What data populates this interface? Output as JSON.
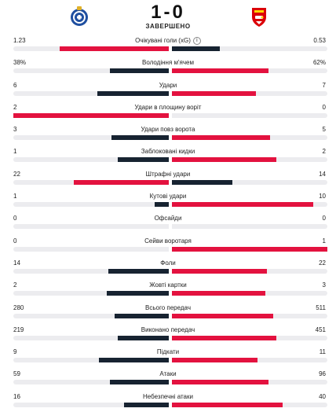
{
  "match": {
    "home_score": "1",
    "separator": "-",
    "away_score": "0",
    "status": "ЗАВЕРШЕНО",
    "home_logo_icon": "fc-porto-crest-icon",
    "away_logo_icon": "arsenal-crest-icon"
  },
  "colors": {
    "leader": "#e3123f",
    "trailer": "#172331",
    "track": "#ececef"
  },
  "stats": [
    {
      "label": "Очікувані голи (xG)",
      "home": "1.23",
      "away": "0.53",
      "home_frac": 0.7,
      "away_frac": 0.31,
      "home_lead": true,
      "away_lead": false,
      "info": "i"
    },
    {
      "label": "Володіння м'ячем",
      "home": "38%",
      "away": "62%",
      "home_frac": 0.38,
      "away_frac": 0.62,
      "home_lead": false,
      "away_lead": true
    },
    {
      "label": "Удари",
      "home": "6",
      "away": "7",
      "home_frac": 0.46,
      "away_frac": 0.54,
      "home_lead": false,
      "away_lead": true
    },
    {
      "label": "Удари в площину воріт",
      "home": "2",
      "away": "0",
      "home_frac": 1.0,
      "away_frac": 0.0,
      "home_lead": true,
      "away_lead": false
    },
    {
      "label": "Удари повз ворота",
      "home": "3",
      "away": "5",
      "home_frac": 0.37,
      "away_frac": 0.63,
      "home_lead": false,
      "away_lead": true
    },
    {
      "label": "Заблоковані кидки",
      "home": "1",
      "away": "2",
      "home_frac": 0.33,
      "away_frac": 0.67,
      "home_lead": false,
      "away_lead": true
    },
    {
      "label": "Штрафні удари",
      "home": "22",
      "away": "14",
      "home_frac": 0.61,
      "away_frac": 0.39,
      "home_lead": true,
      "away_lead": false
    },
    {
      "label": "Кутові удари",
      "home": "1",
      "away": "10",
      "home_frac": 0.09,
      "away_frac": 0.91,
      "home_lead": false,
      "away_lead": true
    },
    {
      "label": "Офсайди",
      "home": "0",
      "away": "0",
      "home_frac": 0.0,
      "away_frac": 0.0,
      "home_lead": false,
      "away_lead": false
    },
    {
      "label": "Сейви воротаря",
      "home": "0",
      "away": "1",
      "home_frac": 0.0,
      "away_frac": 1.0,
      "home_lead": false,
      "away_lead": true
    },
    {
      "label": "Фоли",
      "home": "14",
      "away": "22",
      "home_frac": 0.39,
      "away_frac": 0.61,
      "home_lead": false,
      "away_lead": true
    },
    {
      "label": "Жовті картки",
      "home": "2",
      "away": "3",
      "home_frac": 0.4,
      "away_frac": 0.6,
      "home_lead": false,
      "away_lead": true
    },
    {
      "label": "Всього передач",
      "home": "280",
      "away": "511",
      "home_frac": 0.35,
      "away_frac": 0.65,
      "home_lead": false,
      "away_lead": true
    },
    {
      "label": "Виконано передач",
      "home": "219",
      "away": "451",
      "home_frac": 0.33,
      "away_frac": 0.67,
      "home_lead": false,
      "away_lead": true
    },
    {
      "label": "Підкати",
      "home": "9",
      "away": "11",
      "home_frac": 0.45,
      "away_frac": 0.55,
      "home_lead": false,
      "away_lead": true
    },
    {
      "label": "Атаки",
      "home": "59",
      "away": "96",
      "home_frac": 0.38,
      "away_frac": 0.62,
      "home_lead": false,
      "away_lead": true
    },
    {
      "label": "Небезпечні атаки",
      "home": "16",
      "away": "40",
      "home_frac": 0.29,
      "away_frac": 0.71,
      "home_lead": false,
      "away_lead": true
    }
  ]
}
